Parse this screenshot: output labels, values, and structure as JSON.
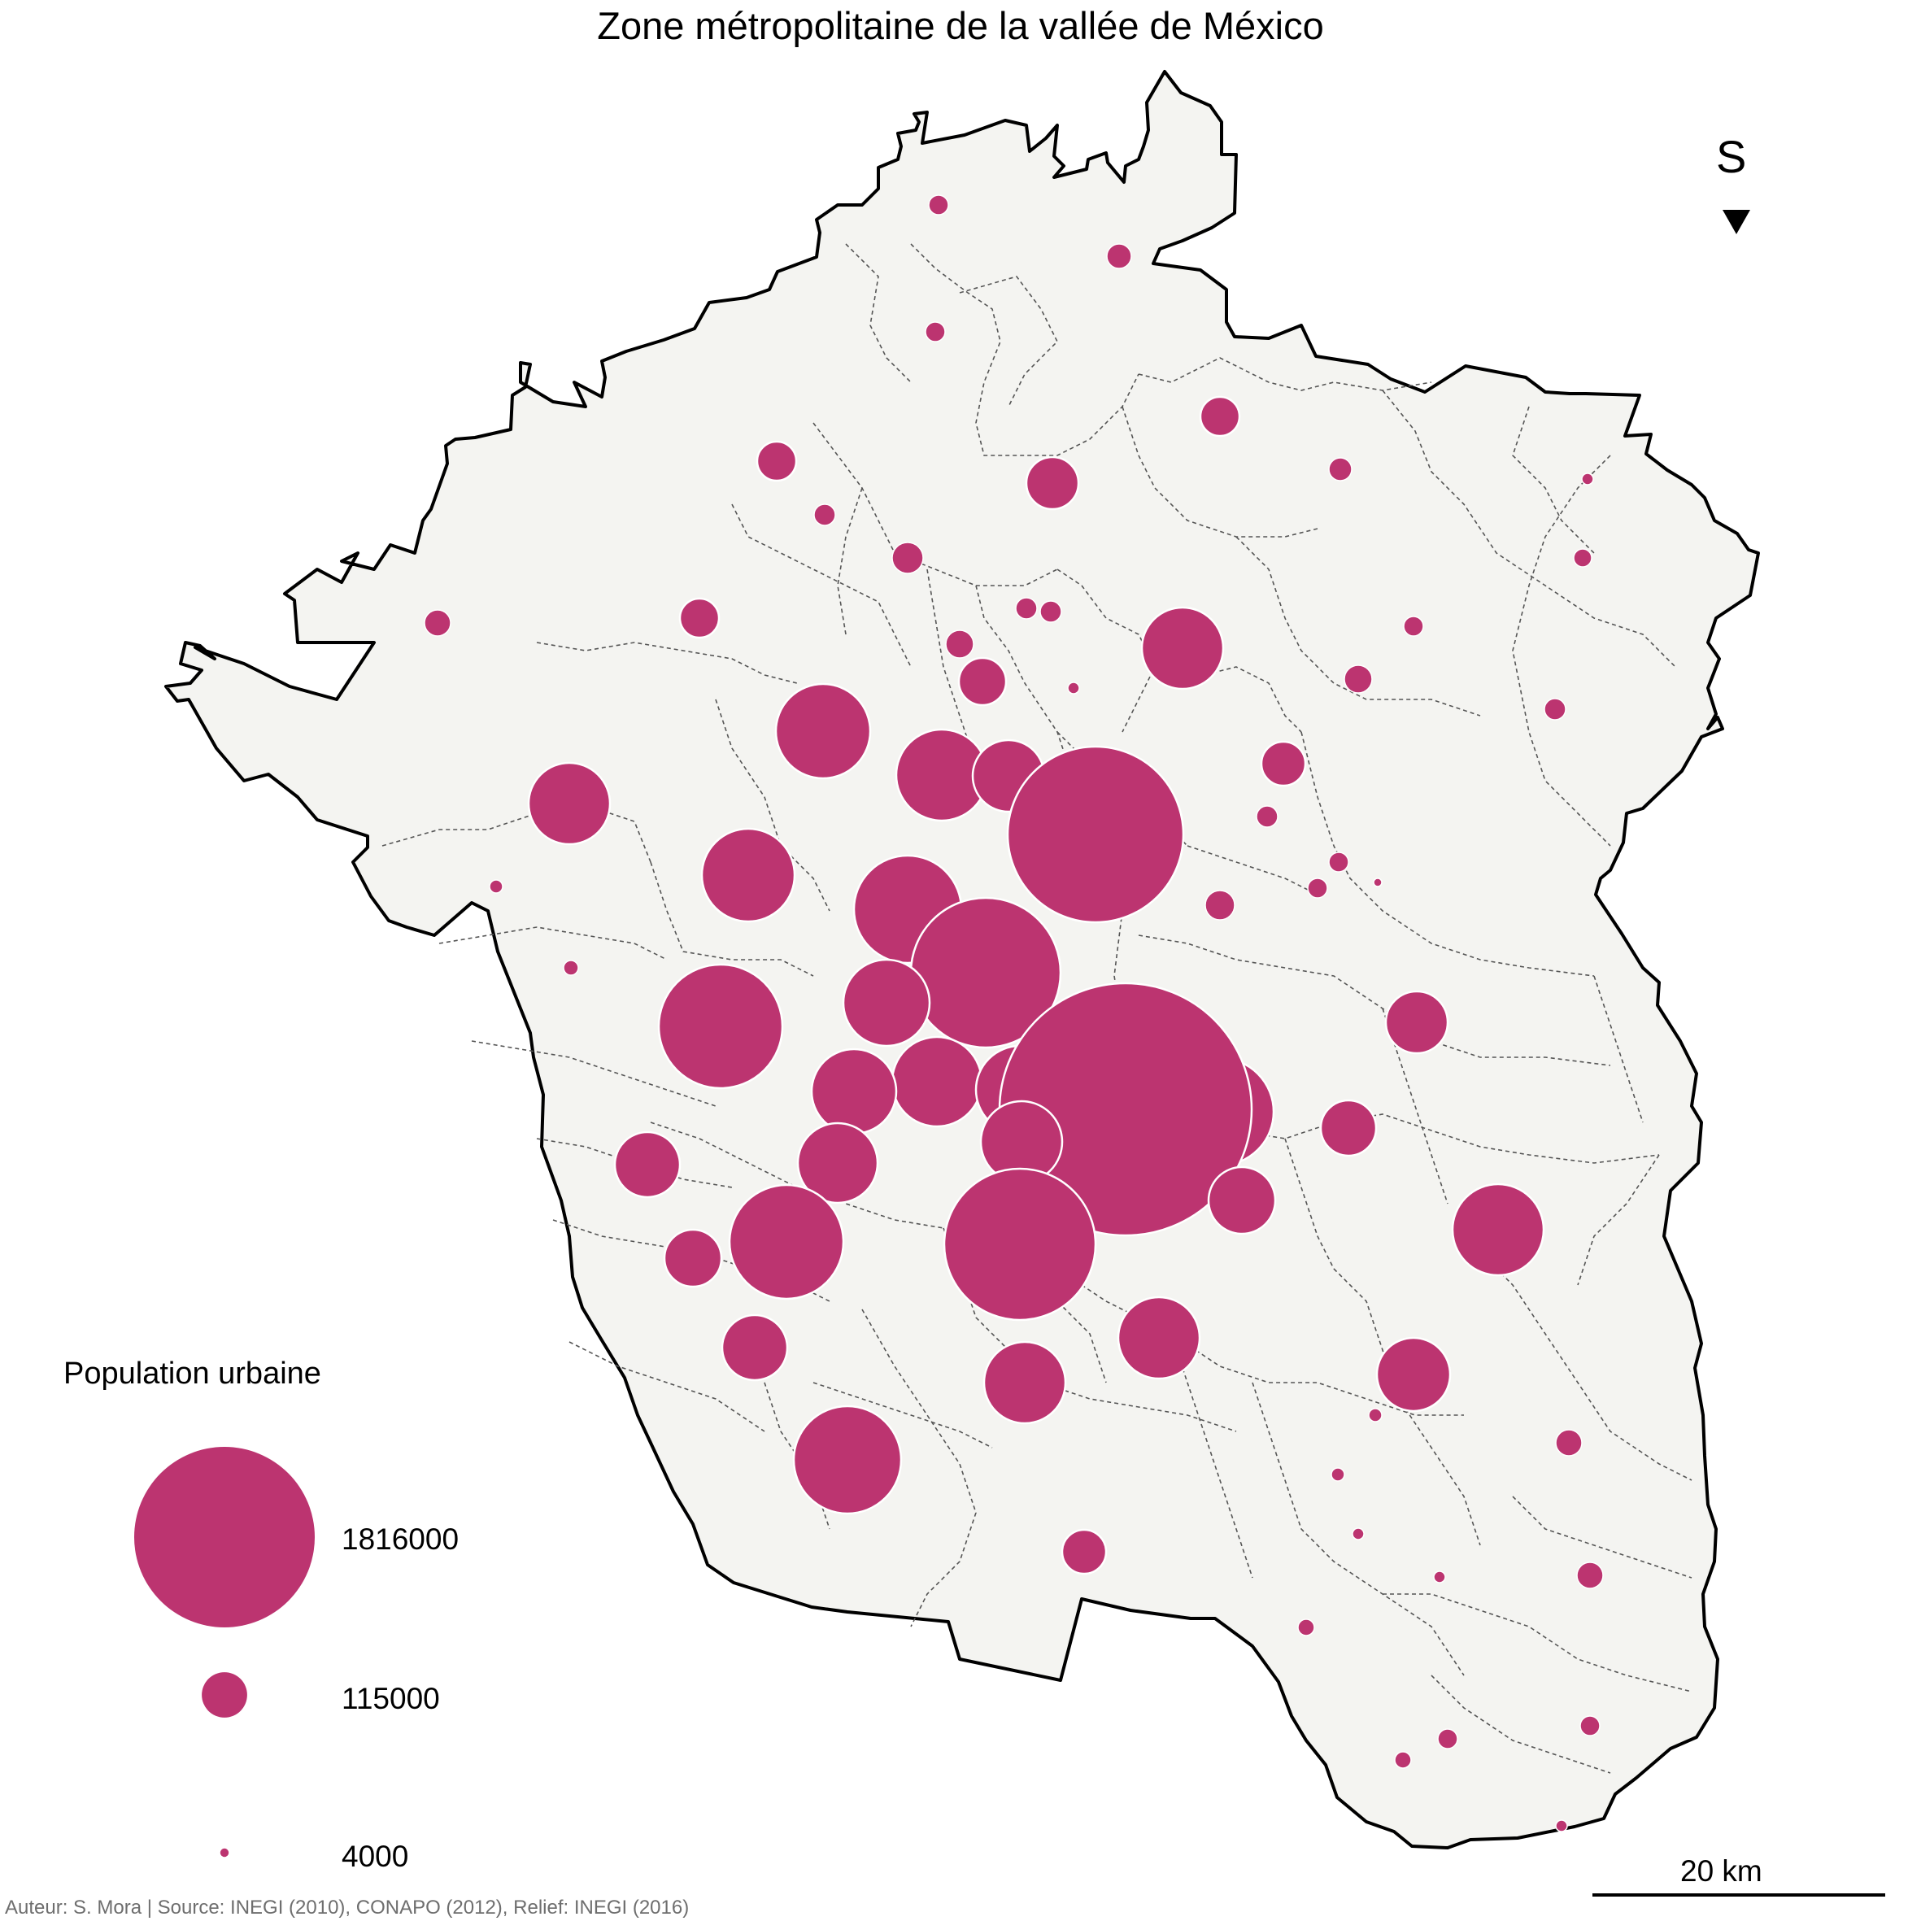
{
  "title": "Zone métropolitaine de la vallée de México",
  "north_arrow": {
    "label": "S",
    "icon": "triangle-down-icon"
  },
  "legend": {
    "title": "Population urbaine",
    "entries": [
      {
        "label": "1816000",
        "value": 1816000
      },
      {
        "label": "115000",
        "value": 115000
      },
      {
        "label": "4000",
        "value": 4000
      }
    ]
  },
  "scale_bar": {
    "label": "20 km",
    "length_km": 20
  },
  "credits": "Auteur: S. Mora | Source: INEGI (2010), CONAPO (2012), Relief: INEGI (2016)",
  "colors": {
    "symbol_fill": "#bc3470",
    "symbol_stroke": "#ffffff",
    "land_fill": "#f4f4f1",
    "boundary": "#000000",
    "municipal_lines": "#555555",
    "credits_text": "#6e6e6e"
  }
}
